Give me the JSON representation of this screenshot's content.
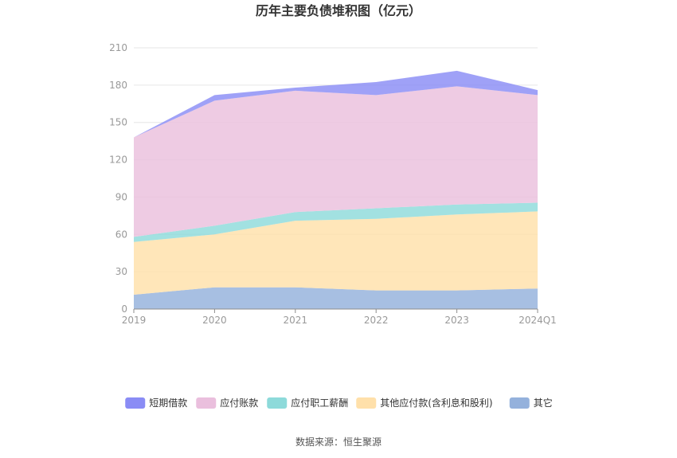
{
  "chart_data": {
    "type": "area",
    "stacked": true,
    "title": "历年主要负债堆积图（亿元）",
    "xlabel": "",
    "ylabel": "",
    "categories": [
      "2019",
      "2020",
      "2021",
      "2022",
      "2023",
      "2024Q1"
    ],
    "ylim": [
      0,
      210
    ],
    "yticks": [
      "0",
      "30",
      "60",
      "90",
      "120",
      "150",
      "180",
      "210"
    ],
    "grid": true,
    "legend_position": "bottom",
    "series": [
      {
        "name": "其它",
        "color": "#94b1dc",
        "values": [
          11.5,
          17.5,
          17.5,
          15,
          15,
          16.5
        ]
      },
      {
        "name": "其他应付款(含利息和股利)",
        "color": "#ffe0aa",
        "values": [
          42.5,
          42.5,
          53.5,
          57.5,
          61,
          62
        ]
      },
      {
        "name": "应付职工薪酬",
        "color": "#8ddada",
        "values": [
          4,
          7,
          7,
          8.5,
          8,
          7
        ]
      },
      {
        "name": "应付账款",
        "color": "#eabfdd",
        "values": [
          80,
          100.5,
          97.5,
          91,
          95,
          86.5
        ]
      },
      {
        "name": "短期借款",
        "color": "#8a8cf5",
        "values": [
          0,
          4.5,
          2.5,
          10.5,
          12.5,
          4
        ]
      }
    ],
    "source": "数据来源：恒生聚源"
  }
}
